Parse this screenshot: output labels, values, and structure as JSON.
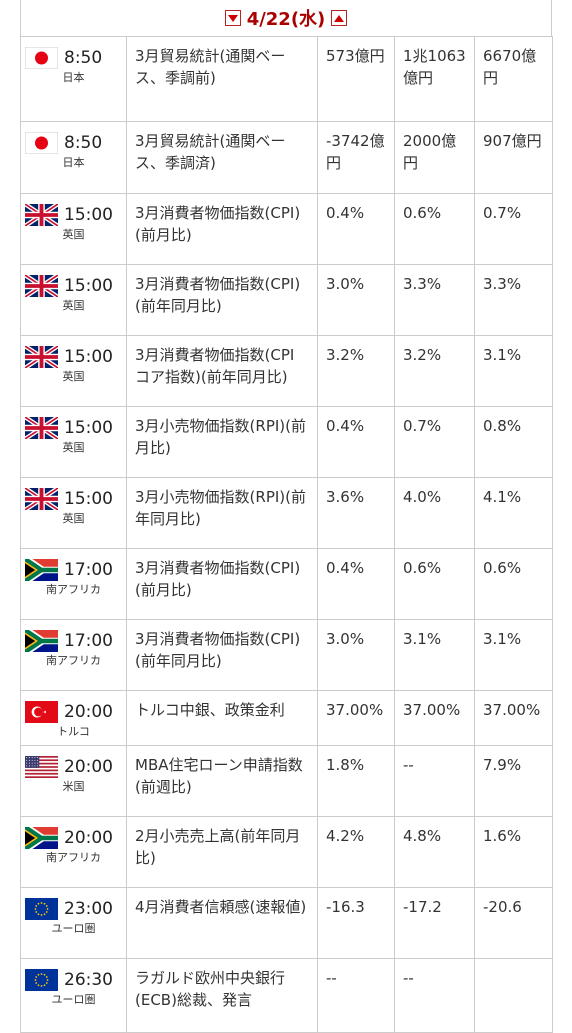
{
  "header": {
    "date": "4/22(水)"
  },
  "rows": [
    {
      "flag": "jp",
      "time": "8:50",
      "country": "日本",
      "event": "3月貿易統計(通関ベース、季調前)",
      "actual": "573億円",
      "forecast": "1兆1063億円",
      "previous": "6670億円",
      "h": 85
    },
    {
      "flag": "jp",
      "time": "8:50",
      "country": "日本",
      "event": "3月貿易統計(通関ベース、季調済)",
      "actual": "-3742億円",
      "forecast": "2000億円",
      "previous": "907億円",
      "h": 72
    },
    {
      "flag": "uk",
      "time": "15:00",
      "country": "英国",
      "event": "3月消費者物価指数(CPI)(前月比)",
      "actual": "0.4%",
      "forecast": "0.6%",
      "previous": "0.7%",
      "h": 71
    },
    {
      "flag": "uk",
      "time": "15:00",
      "country": "英国",
      "event": "3月消費者物価指数(CPI)(前年同月比)",
      "actual": "3.0%",
      "forecast": "3.3%",
      "previous": "3.3%",
      "h": 71
    },
    {
      "flag": "uk",
      "time": "15:00",
      "country": "英国",
      "event": "3月消費者物価指数(CPIコア指数)(前年同月比)",
      "actual": "3.2%",
      "forecast": "3.2%",
      "previous": "3.1%",
      "h": 71
    },
    {
      "flag": "uk",
      "time": "15:00",
      "country": "英国",
      "event": "3月小売物価指数(RPI)(前月比)",
      "actual": "0.4%",
      "forecast": "0.7%",
      "previous": "0.8%",
      "h": 71
    },
    {
      "flag": "uk",
      "time": "15:00",
      "country": "英国",
      "event": "3月小売物価指数(RPI)(前年同月比)",
      "actual": "3.6%",
      "forecast": "4.0%",
      "previous": "4.1%",
      "h": 71
    },
    {
      "flag": "za",
      "time": "17:00",
      "country": "南アフリカ",
      "event": "3月消費者物価指数(CPI)(前月比)",
      "actual": "0.4%",
      "forecast": "0.6%",
      "previous": "0.6%",
      "h": 71
    },
    {
      "flag": "za",
      "time": "17:00",
      "country": "南アフリカ",
      "event": "3月消費者物価指数(CPI)(前年同月比)",
      "actual": "3.0%",
      "forecast": "3.1%",
      "previous": "3.1%",
      "h": 71
    },
    {
      "flag": "tr",
      "time": "20:00",
      "country": "トルコ",
      "event": "トルコ中銀、政策金利",
      "actual": "37.00%",
      "forecast": "37.00%",
      "previous": "37.00%",
      "h": 50
    },
    {
      "flag": "us",
      "time": "20:00",
      "country": "米国",
      "event": "MBA住宅ローン申請指数(前週比)",
      "actual": "1.8%",
      "forecast": "--",
      "previous": "7.9%",
      "h": 71
    },
    {
      "flag": "za",
      "time": "20:00",
      "country": "南アフリカ",
      "event": "2月小売売上高(前年同月比)",
      "actual": "4.2%",
      "forecast": "4.8%",
      "previous": "1.6%",
      "h": 71
    },
    {
      "flag": "eu",
      "time": "23:00",
      "country": "ユーロ圏",
      "event": "4月消費者信頼感(速報値)",
      "actual": "-16.3",
      "forecast": "-17.2",
      "previous": "-20.6",
      "h": 71
    },
    {
      "flag": "eu",
      "time": "26:30",
      "country": "ユーロ圏",
      "event": "ラガルド欧州中央銀行(ECB)総裁、発言",
      "actual": "--",
      "forecast": "--",
      "previous": "",
      "h": 74
    }
  ],
  "flag_names": {
    "jp": "japan-flag-icon",
    "uk": "uk-flag-icon",
    "za": "south-africa-flag-icon",
    "tr": "turkey-flag-icon",
    "us": "us-flag-icon",
    "eu": "eu-flag-icon"
  }
}
